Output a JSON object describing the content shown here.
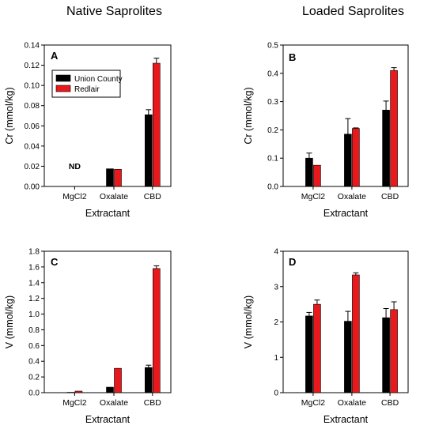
{
  "headings": {
    "left": "Native Saprolites",
    "right": "Loaded Saprolites"
  },
  "colors": {
    "union": "#000000",
    "redlair": "#e8191c",
    "axis": "#000000",
    "errbar": "#000000"
  },
  "legend": {
    "entries": [
      "Union County",
      "Redlair"
    ]
  },
  "chart_data": [
    {
      "id": "A",
      "type": "bar",
      "panel_label": "A",
      "categories": [
        "MgCl2",
        "Oxalate",
        "CBD"
      ],
      "xlabel": "Extractant",
      "ylabel": "Cr (mmol/kg)",
      "ylim": [
        0,
        0.14
      ],
      "yticks": [
        "0.00",
        "0.02",
        "0.04",
        "0.06",
        "0.08",
        "0.10",
        "0.12",
        "0.14"
      ],
      "series": [
        {
          "name": "Union County",
          "values": [
            0,
            0.0175,
            0.071
          ],
          "errors": [
            0,
            0,
            0.005
          ]
        },
        {
          "name": "Redlair",
          "values": [
            0,
            0.017,
            0.122
          ],
          "errors": [
            0,
            0,
            0.005
          ]
        }
      ],
      "annotations": [
        {
          "text": "ND",
          "category": "MgCl2"
        }
      ],
      "legend": {
        "placement": "top-left"
      }
    },
    {
      "id": "B",
      "type": "bar",
      "panel_label": "B",
      "categories": [
        "MgCl2",
        "Oxalate",
        "CBD"
      ],
      "xlabel": "Extractant",
      "ylabel": "Cr (mmol/kg)",
      "ylim": [
        0,
        0.5
      ],
      "yticks": [
        "0.0",
        "0.1",
        "0.2",
        "0.3",
        "0.4",
        "0.5"
      ],
      "series": [
        {
          "name": "Union County",
          "values": [
            0.1,
            0.185,
            0.27
          ],
          "errors": [
            0.018,
            0.055,
            0.032
          ]
        },
        {
          "name": "Redlair",
          "values": [
            0.075,
            0.205,
            0.41
          ],
          "errors": [
            0,
            0.002,
            0.01
          ]
        }
      ]
    },
    {
      "id": "C",
      "type": "bar",
      "panel_label": "C",
      "categories": [
        "MgCl2",
        "Oxalate",
        "CBD"
      ],
      "xlabel": "Extractant",
      "ylabel": "V (mmol/kg)",
      "ylim": [
        0,
        1.8
      ],
      "yticks": [
        "0.0",
        "0.2",
        "0.4",
        "0.6",
        "0.8",
        "1.0",
        "1.2",
        "1.4",
        "1.6",
        "1.8"
      ],
      "series": [
        {
          "name": "Union County",
          "values": [
            0.005,
            0.07,
            0.32
          ],
          "errors": [
            0,
            0,
            0.03
          ]
        },
        {
          "name": "Redlair",
          "values": [
            0.02,
            0.31,
            1.58
          ],
          "errors": [
            0,
            0,
            0.035
          ]
        }
      ]
    },
    {
      "id": "D",
      "type": "bar",
      "panel_label": "D",
      "categories": [
        "MgCl2",
        "Oxalate",
        "CBD"
      ],
      "xlabel": "Extractant",
      "ylabel": "V (mmol/kg)",
      "ylim": [
        0,
        4
      ],
      "yticks": [
        "0",
        "1",
        "2",
        "3",
        "4"
      ],
      "series": [
        {
          "name": "Union County",
          "values": [
            2.17,
            2.02,
            2.12
          ],
          "errors": [
            0.1,
            0.28,
            0.26
          ]
        },
        {
          "name": "Redlair",
          "values": [
            2.5,
            3.33,
            2.35
          ],
          "errors": [
            0.12,
            0.06,
            0.22
          ]
        }
      ]
    }
  ]
}
